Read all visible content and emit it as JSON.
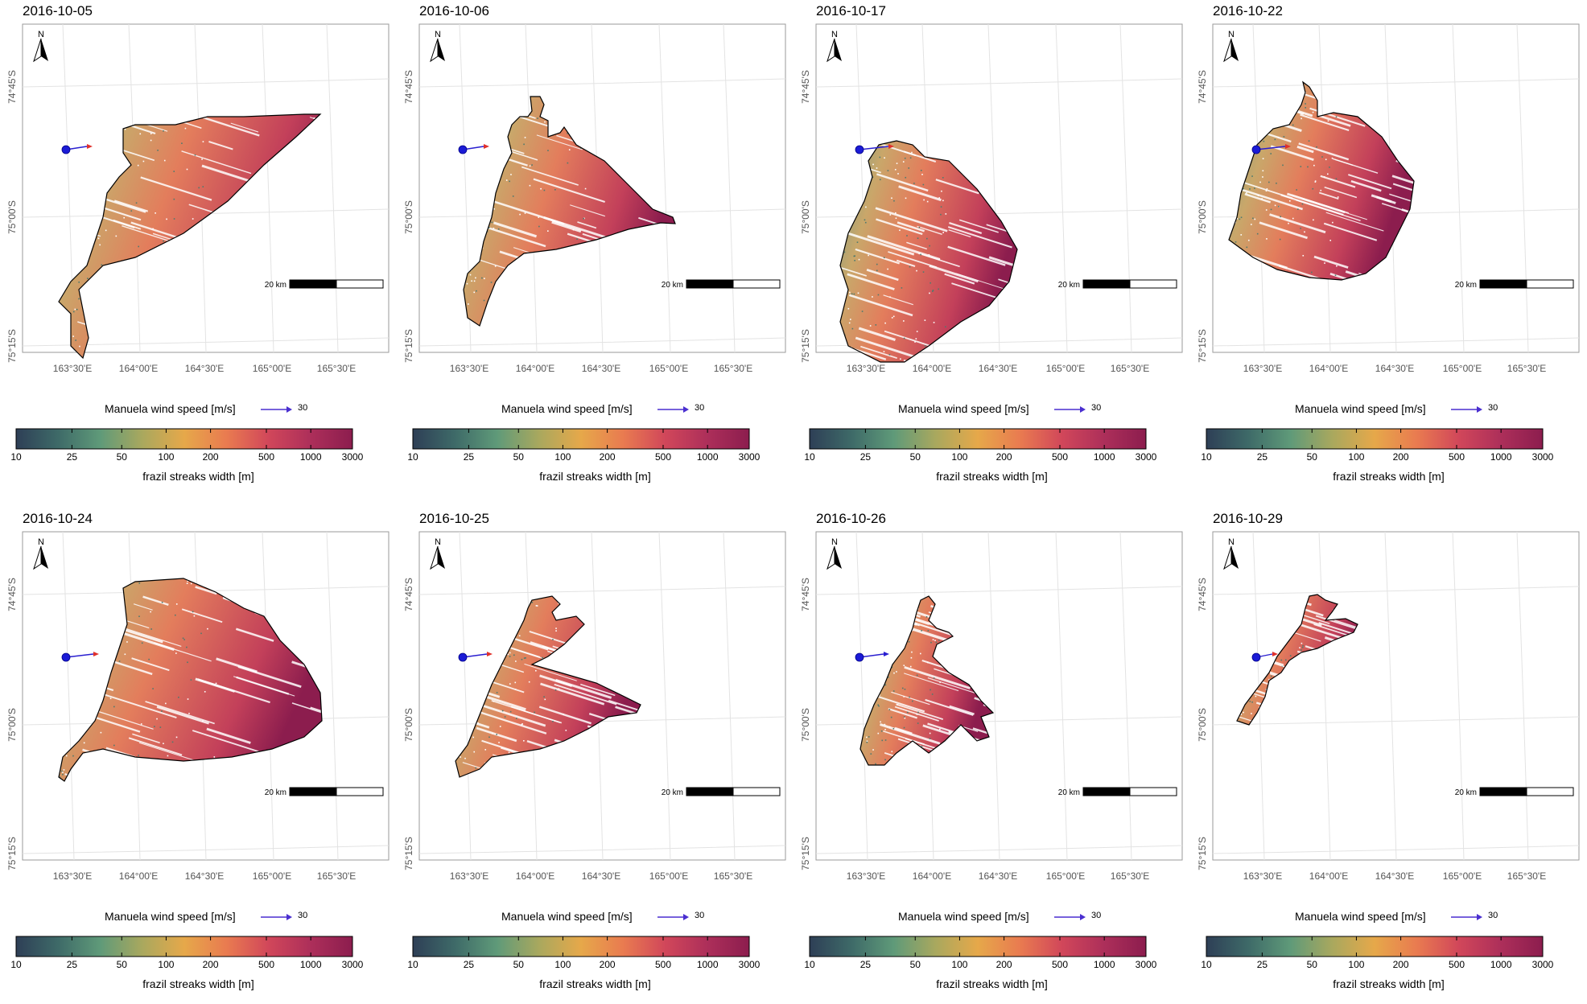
{
  "figure": {
    "panels": [
      {
        "date": "2016-10-05",
        "ice": "red",
        "wind_len": 26,
        "streak_level": 0.55,
        "outline": [
          [
            125,
            130
          ],
          [
            140,
            125
          ],
          [
            190,
            125
          ],
          [
            230,
            115
          ],
          [
            275,
            115
          ],
          [
            350,
            112
          ],
          [
            370,
            112
          ],
          [
            340,
            140
          ],
          [
            300,
            175
          ],
          [
            255,
            220
          ],
          [
            200,
            260
          ],
          [
            140,
            290
          ],
          [
            100,
            300
          ],
          [
            70,
            330
          ],
          [
            82,
            390
          ],
          [
            75,
            415
          ],
          [
            60,
            400
          ],
          [
            60,
            360
          ],
          [
            45,
            345
          ],
          [
            60,
            320
          ],
          [
            80,
            300
          ],
          [
            90,
            270
          ],
          [
            100,
            240
          ],
          [
            105,
            210
          ],
          [
            120,
            190
          ],
          [
            135,
            175
          ],
          [
            125,
            160
          ]
        ]
      },
      {
        "date": "2016-10-06",
        "ice": "red",
        "wind_len": 26,
        "streak_level": 0.5,
        "outline": [
          [
            115,
            125
          ],
          [
            125,
            115
          ],
          [
            135,
            115
          ],
          [
            140,
            108
          ],
          [
            138,
            90
          ],
          [
            150,
            90
          ],
          [
            155,
            100
          ],
          [
            150,
            115
          ],
          [
            160,
            120
          ],
          [
            160,
            140
          ],
          [
            175,
            135
          ],
          [
            180,
            128
          ],
          [
            195,
            150
          ],
          [
            230,
            170
          ],
          [
            260,
            200
          ],
          [
            290,
            230
          ],
          [
            315,
            240
          ],
          [
            318,
            248
          ],
          [
            300,
            247
          ],
          [
            260,
            255
          ],
          [
            220,
            268
          ],
          [
            170,
            280
          ],
          [
            130,
            285
          ],
          [
            110,
            300
          ],
          [
            95,
            320
          ],
          [
            85,
            345
          ],
          [
            75,
            375
          ],
          [
            60,
            365
          ],
          [
            55,
            330
          ],
          [
            60,
            310
          ],
          [
            75,
            295
          ],
          [
            80,
            270
          ],
          [
            90,
            240
          ],
          [
            95,
            210
          ],
          [
            105,
            180
          ],
          [
            115,
            160
          ],
          [
            110,
            140
          ]
        ]
      },
      {
        "date": "2016-10-17",
        "ice": "red",
        "wind_len": 36,
        "streak_level": 0.6,
        "outline": [
          [
            78,
            150
          ],
          [
            100,
            145
          ],
          [
            120,
            150
          ],
          [
            135,
            165
          ],
          [
            165,
            170
          ],
          [
            200,
            205
          ],
          [
            230,
            245
          ],
          [
            250,
            280
          ],
          [
            240,
            320
          ],
          [
            215,
            350
          ],
          [
            180,
            370
          ],
          [
            140,
            400
          ],
          [
            110,
            420
          ],
          [
            80,
            420
          ],
          [
            40,
            400
          ],
          [
            30,
            370
          ],
          [
            40,
            330
          ],
          [
            30,
            300
          ],
          [
            40,
            260
          ],
          [
            60,
            220
          ],
          [
            70,
            190
          ],
          [
            65,
            170
          ]
        ]
      },
      {
        "date": "2016-10-22",
        "ice": "red",
        "wind_len": 36,
        "streak_level": 0.4,
        "outline": [
          [
            110,
            100
          ],
          [
            115,
            85
          ],
          [
            112,
            72
          ],
          [
            120,
            78
          ],
          [
            130,
            95
          ],
          [
            130,
            115
          ],
          [
            150,
            110
          ],
          [
            180,
            115
          ],
          [
            210,
            140
          ],
          [
            230,
            170
          ],
          [
            250,
            195
          ],
          [
            245,
            230
          ],
          [
            230,
            260
          ],
          [
            215,
            290
          ],
          [
            190,
            310
          ],
          [
            160,
            318
          ],
          [
            120,
            315
          ],
          [
            80,
            305
          ],
          [
            50,
            290
          ],
          [
            20,
            268
          ],
          [
            30,
            240
          ],
          [
            35,
            210
          ],
          [
            45,
            180
          ],
          [
            55,
            150
          ],
          [
            75,
            130
          ],
          [
            95,
            125
          ]
        ]
      },
      {
        "date": "2016-10-24",
        "ice": "red",
        "wind_len": 34,
        "streak_level": 0.7,
        "outline": [
          [
            125,
            70
          ],
          [
            140,
            62
          ],
          [
            200,
            58
          ],
          [
            240,
            75
          ],
          [
            275,
            95
          ],
          [
            300,
            105
          ],
          [
            320,
            135
          ],
          [
            350,
            165
          ],
          [
            370,
            200
          ],
          [
            372,
            235
          ],
          [
            350,
            255
          ],
          [
            310,
            270
          ],
          [
            260,
            280
          ],
          [
            200,
            285
          ],
          [
            140,
            280
          ],
          [
            100,
            270
          ],
          [
            75,
            275
          ],
          [
            60,
            295
          ],
          [
            52,
            310
          ],
          [
            45,
            305
          ],
          [
            50,
            280
          ],
          [
            70,
            260
          ],
          [
            90,
            235
          ],
          [
            100,
            210
          ],
          [
            110,
            175
          ],
          [
            120,
            145
          ],
          [
            130,
            115
          ]
        ]
      },
      {
        "date": "2016-10-25",
        "ice": "red",
        "wind_len": 30,
        "streak_level": 0.55,
        "outline": [
          [
            135,
            95
          ],
          [
            140,
            85
          ],
          [
            165,
            80
          ],
          [
            175,
            90
          ],
          [
            165,
            100
          ],
          [
            170,
            110
          ],
          [
            195,
            105
          ],
          [
            205,
            115
          ],
          [
            180,
            140
          ],
          [
            160,
            155
          ],
          [
            140,
            165
          ],
          [
            175,
            175
          ],
          [
            220,
            188
          ],
          [
            255,
            205
          ],
          [
            275,
            215
          ],
          [
            270,
            225
          ],
          [
            235,
            230
          ],
          [
            210,
            245
          ],
          [
            180,
            260
          ],
          [
            150,
            270
          ],
          [
            120,
            275
          ],
          [
            90,
            280
          ],
          [
            75,
            295
          ],
          [
            50,
            305
          ],
          [
            45,
            285
          ],
          [
            60,
            265
          ],
          [
            70,
            240
          ],
          [
            80,
            215
          ],
          [
            90,
            190
          ],
          [
            100,
            170
          ],
          [
            110,
            150
          ],
          [
            120,
            130
          ],
          [
            130,
            110
          ]
        ]
      },
      {
        "date": "2016-10-26",
        "ice": "blue",
        "wind_len": 30,
        "streak_level": 0.45,
        "outline": [
          [
            130,
            85
          ],
          [
            140,
            80
          ],
          [
            148,
            90
          ],
          [
            140,
            110
          ],
          [
            150,
            120
          ],
          [
            165,
            125
          ],
          [
            170,
            130
          ],
          [
            150,
            140
          ],
          [
            145,
            155
          ],
          [
            165,
            175
          ],
          [
            190,
            190
          ],
          [
            205,
            210
          ],
          [
            220,
            225
          ],
          [
            205,
            230
          ],
          [
            215,
            255
          ],
          [
            200,
            260
          ],
          [
            180,
            240
          ],
          [
            160,
            260
          ],
          [
            140,
            275
          ],
          [
            120,
            260
          ],
          [
            100,
            275
          ],
          [
            85,
            290
          ],
          [
            65,
            290
          ],
          [
            55,
            270
          ],
          [
            60,
            245
          ],
          [
            72,
            215
          ],
          [
            85,
            190
          ],
          [
            95,
            165
          ],
          [
            110,
            145
          ],
          [
            120,
            120
          ],
          [
            125,
            100
          ]
        ]
      },
      {
        "date": "2016-10-29",
        "ice": "red",
        "wind_len": 20,
        "streak_level": 0.6,
        "outline": [
          [
            120,
            80
          ],
          [
            130,
            78
          ],
          [
            140,
            85
          ],
          [
            155,
            90
          ],
          [
            148,
            100
          ],
          [
            140,
            110
          ],
          [
            165,
            108
          ],
          [
            180,
            115
          ],
          [
            175,
            125
          ],
          [
            150,
            135
          ],
          [
            130,
            145
          ],
          [
            110,
            150
          ],
          [
            95,
            160
          ],
          [
            85,
            175
          ],
          [
            70,
            185
          ],
          [
            65,
            205
          ],
          [
            55,
            225
          ],
          [
            45,
            240
          ],
          [
            30,
            235
          ],
          [
            40,
            215
          ],
          [
            55,
            195
          ],
          [
            70,
            175
          ],
          [
            80,
            155
          ],
          [
            95,
            135
          ],
          [
            110,
            115
          ],
          [
            115,
            95
          ]
        ]
      }
    ],
    "axes": {
      "x_ticks": [
        "163°30'E",
        "164°00'E",
        "164°30'E",
        "165°00'E",
        "165°30'E"
      ],
      "y_ticks": [
        "74°45'S",
        "75°00'S",
        "75°15'S"
      ]
    },
    "north_arrow_label": "N",
    "scalebar_label": "20 km",
    "wind_legend": {
      "label": "Manuela wind speed [m/s]",
      "value": "30"
    },
    "colorbar": {
      "title": "frazil streaks width [m]",
      "ticks": [
        "10",
        "25",
        "50",
        "100",
        "200",
        "500",
        "1000",
        "3000"
      ],
      "tick_fractions": [
        0,
        0.166,
        0.314,
        0.446,
        0.578,
        0.744,
        0.876,
        1
      ],
      "colors": [
        "#2e3f56",
        "#3e6a68",
        "#5f9a79",
        "#a9a85e",
        "#e6a84a",
        "#e97b50",
        "#d1475a",
        "#ad2f5a",
        "#8c1d4e"
      ]
    }
  }
}
